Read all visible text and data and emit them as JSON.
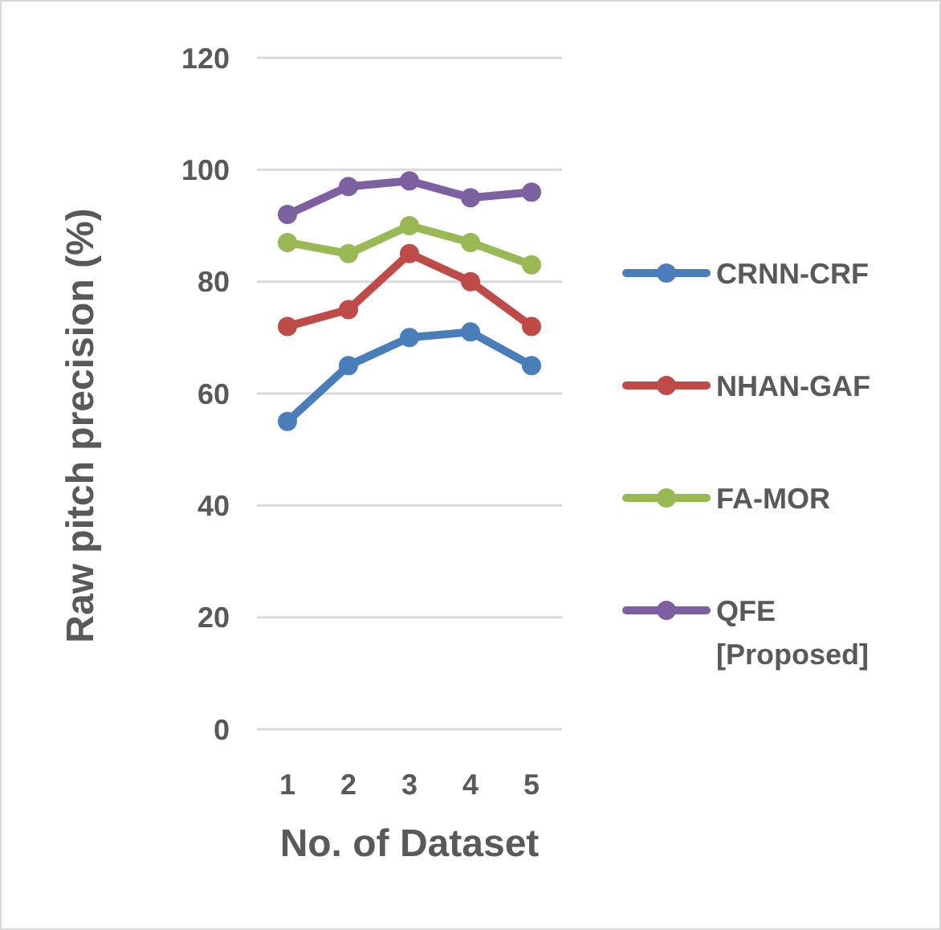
{
  "chart_data": {
    "type": "line",
    "xlabel": "No. of Dataset",
    "ylabel": "Raw pitch precision (%)",
    "categories": [
      "1",
      "2",
      "3",
      "4",
      "5"
    ],
    "series": [
      {
        "name": "CRNN-CRF",
        "color": "#4a7ebb",
        "values": [
          55,
          65,
          70,
          71,
          65
        ]
      },
      {
        "name": "NHAN-GAF",
        "color": "#be4b48",
        "values": [
          72,
          75,
          85,
          80,
          72
        ]
      },
      {
        "name": "FA-MOR",
        "color": "#98b954",
        "values": [
          87,
          85,
          90,
          87,
          83
        ]
      },
      {
        "name": "QFE [Proposed]",
        "color": "#7d60a0",
        "values": [
          92,
          97,
          98,
          95,
          96
        ]
      }
    ],
    "ylim": [
      0,
      120
    ],
    "yticks": [
      0,
      20,
      40,
      60,
      80,
      100,
      120
    ],
    "grid": "y",
    "legend": "right",
    "marker": "circle",
    "line_style": "solid"
  }
}
